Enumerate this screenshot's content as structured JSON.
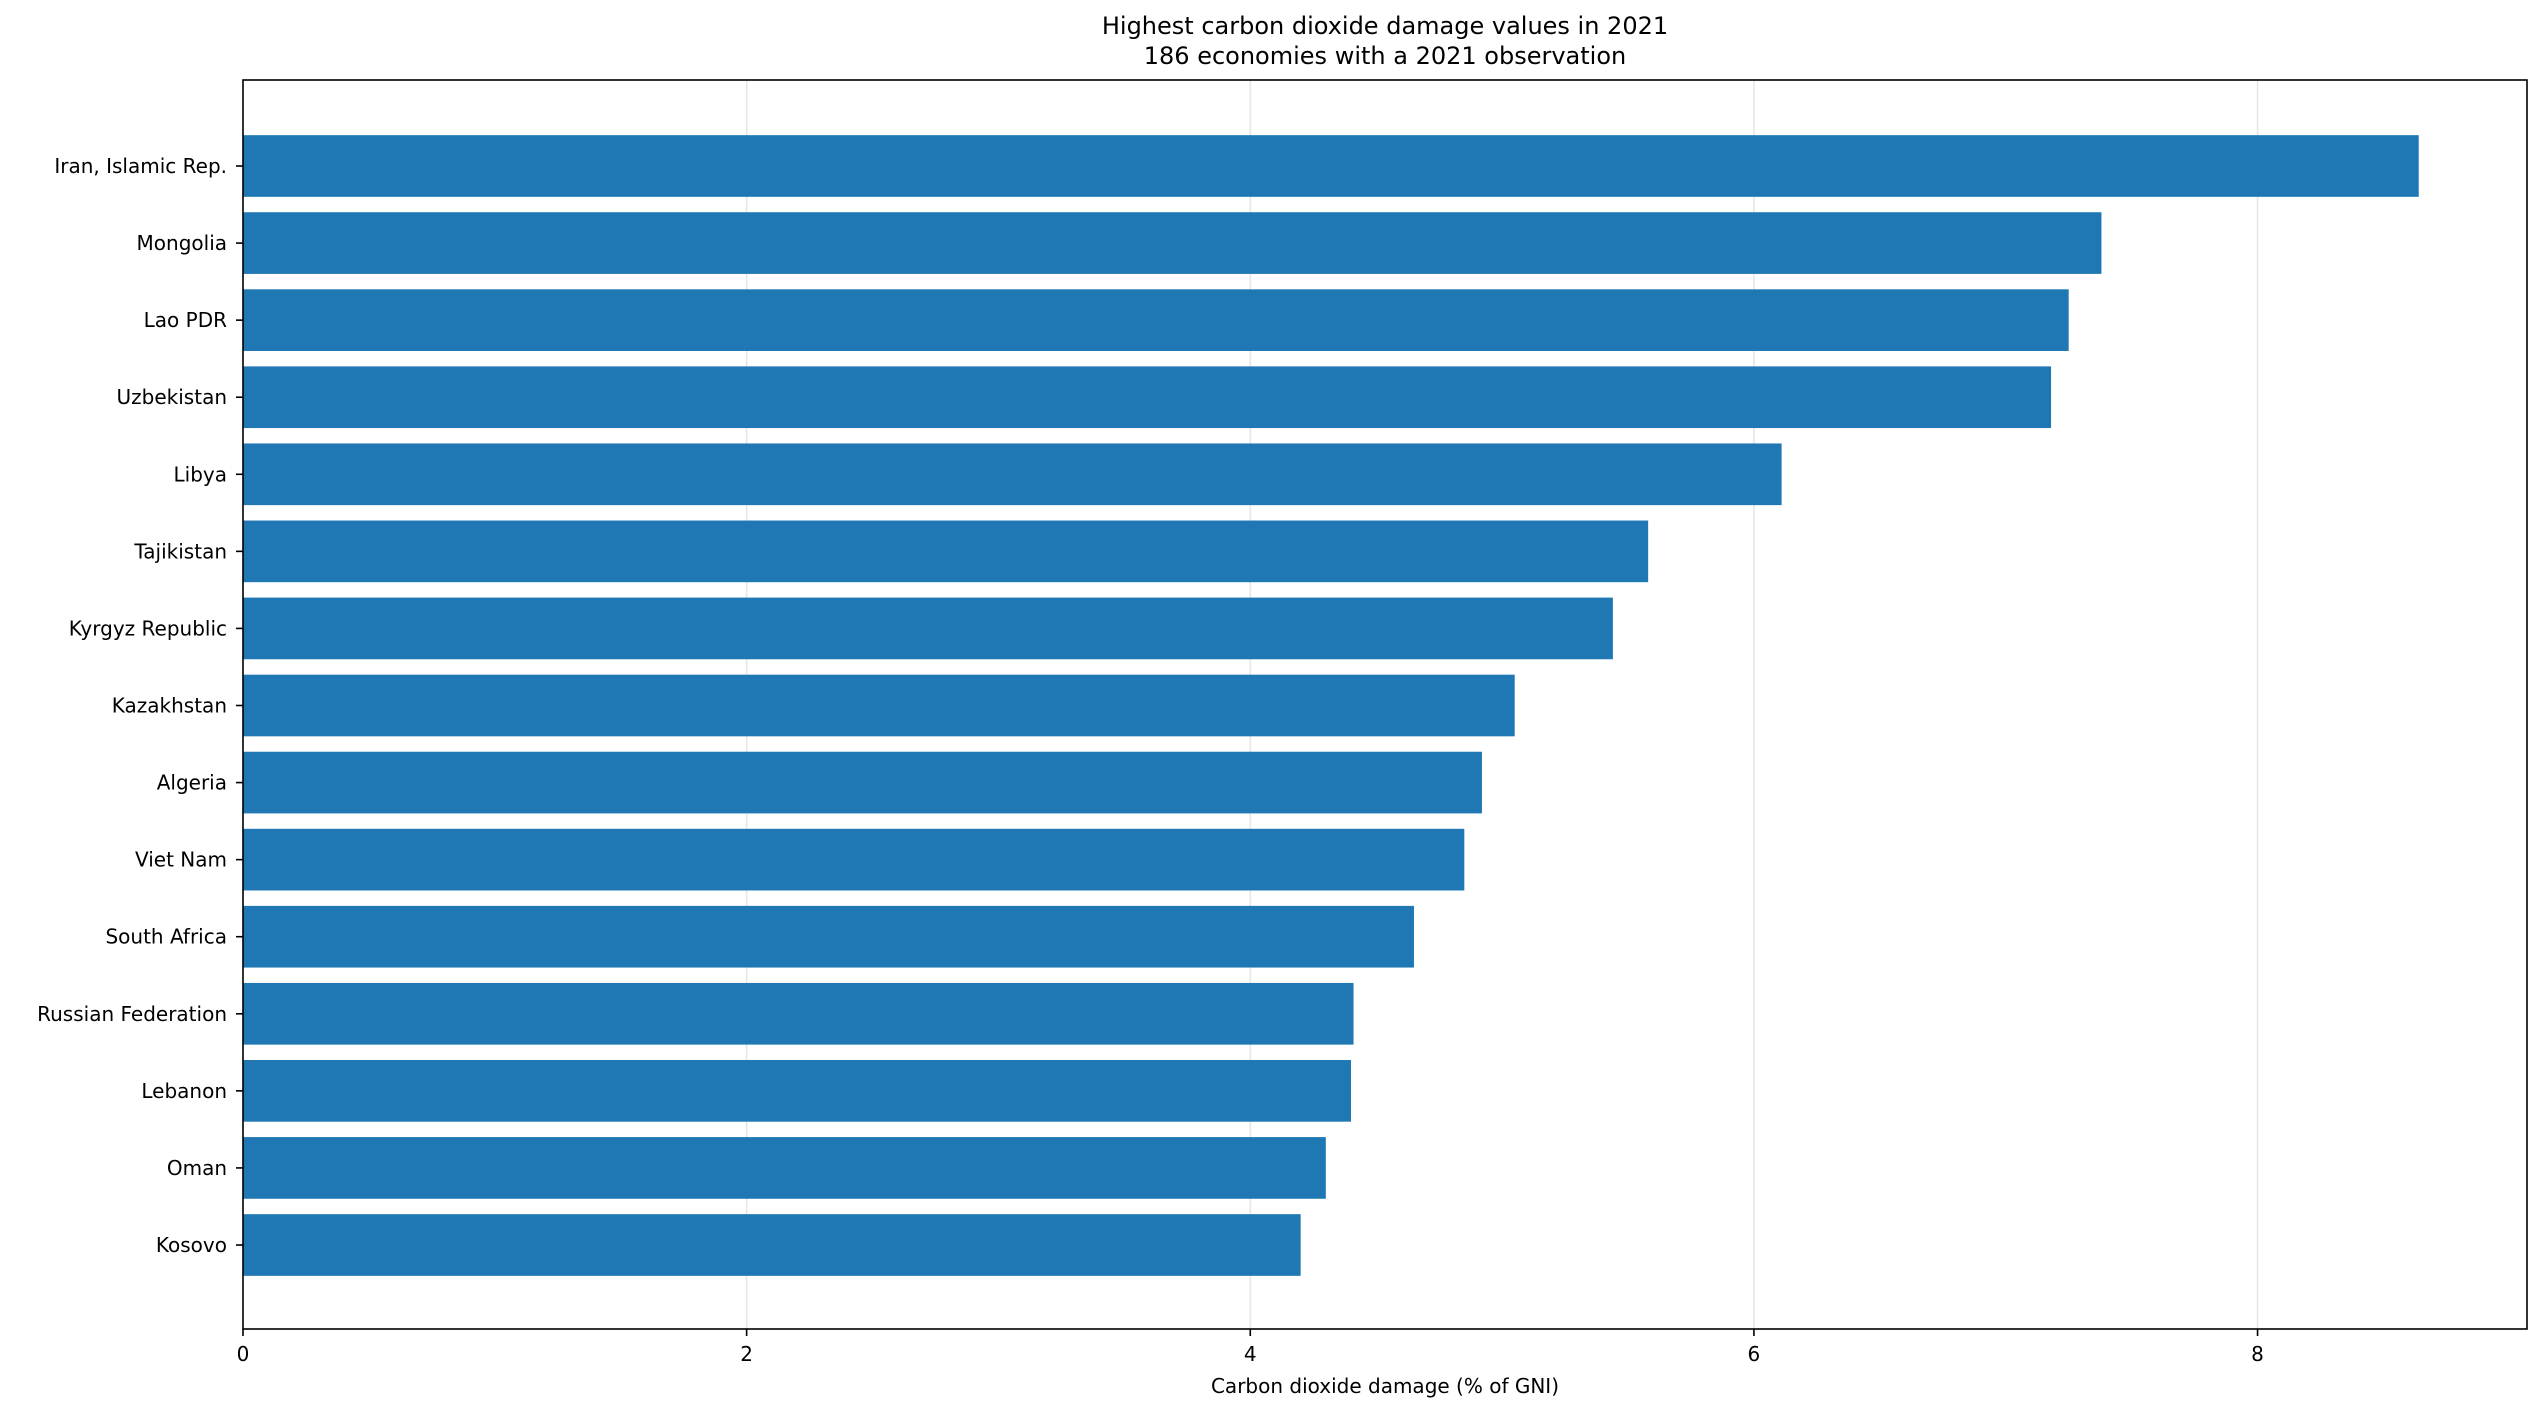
{
  "chart_data": {
    "type": "bar",
    "orientation": "horizontal",
    "title": "Highest carbon dioxide damage values in 2021",
    "subtitle": "186 economies with a 2021 observation",
    "xlabel": "Carbon dioxide damage (% of GNI)",
    "ylabel": "",
    "xlim": [
      0,
      9.07
    ],
    "x_ticks": [
      "0",
      "2",
      "4",
      "6",
      "8"
    ],
    "grid": "x",
    "bar_color": "#1f77b4",
    "categories": [
      "Iran, Islamic Rep.",
      "Mongolia",
      "Lao PDR",
      "Uzbekistan",
      "Libya",
      "Tajikistan",
      "Kyrgyz Republic",
      "Kazakhstan",
      "Algeria",
      "Viet Nam",
      "South Africa",
      "Russian Federation",
      "Lebanon",
      "Oman",
      "Kosovo"
    ],
    "values": [
      8.64,
      7.38,
      7.25,
      7.18,
      6.11,
      5.58,
      5.44,
      5.05,
      4.92,
      4.85,
      4.65,
      4.41,
      4.4,
      4.3,
      4.2
    ]
  }
}
